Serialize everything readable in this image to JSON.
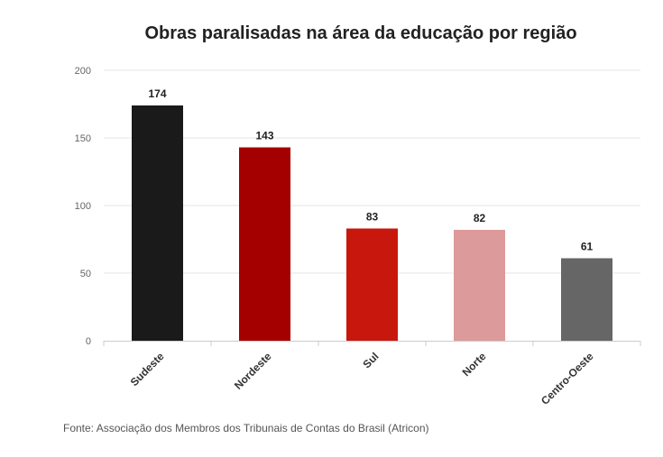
{
  "chart_data": {
    "type": "bar",
    "title": "Obras paralisadas na área da educação por região",
    "categories": [
      "Sudeste",
      "Nordeste",
      "Sul",
      "Norte",
      "Centro-Oeste"
    ],
    "values": [
      174,
      143,
      83,
      82,
      61
    ],
    "bar_colors": [
      "#1a1a1a",
      "#a50000",
      "#c8170c",
      "#dc9a9a",
      "#666666"
    ],
    "yticks": [
      0,
      50,
      100,
      150,
      200
    ],
    "ylim": [
      0,
      200
    ],
    "xlabel": "",
    "ylabel": "",
    "grid": true,
    "legend": "none",
    "source": "Fonte: Associação dos Membros dos Tribunais de Contas do Brasil (Atricon)"
  }
}
